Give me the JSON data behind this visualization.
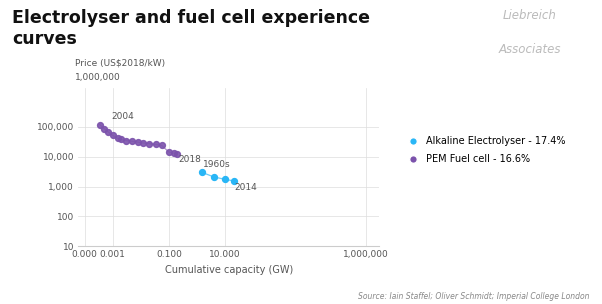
{
  "title": "Electrolyser and fuel cell experience\ncurves",
  "xlabel": "Cumulative capacity (GW)",
  "source": "Source: Iain Staffel; Oliver Schmidt; Imperial College London",
  "logo_line1": "Liebreich",
  "logo_line2": "Associates",
  "pem_x": [
    0.00035,
    0.0005,
    0.0007,
    0.001,
    0.0015,
    0.002,
    0.003,
    0.005,
    0.008,
    0.012,
    0.02,
    0.035,
    0.055,
    0.1,
    0.15,
    0.2
  ],
  "pem_y": [
    120000,
    88000,
    68000,
    52000,
    42000,
    38000,
    35000,
    33000,
    31000,
    29000,
    27500,
    26000,
    24000,
    14500,
    13200,
    12800
  ],
  "pem_color": "#7B52AB",
  "pem_label": "PEM Fuel cell - 16.6%",
  "alkaline_x": [
    1.5,
    4.0,
    10.0,
    20.0
  ],
  "alkaline_y": [
    3000,
    2100,
    1750,
    1550
  ],
  "alkaline_color": "#29B6F6",
  "alkaline_label": "Alkaline Electrolyser - 17.4%",
  "ann_2004_x": 0.00035,
  "ann_2004_y": 120000,
  "ann_2018_x": 0.2,
  "ann_2018_y": 12800,
  "ann_1960s_x": 1.5,
  "ann_1960s_y": 3000,
  "ann_2014_x": 20.0,
  "ann_2014_y": 1550,
  "x_ticks": [
    0.0001,
    0.001,
    0.1,
    10,
    1000000
  ],
  "x_labels": [
    "0.000",
    "0.001",
    "0.100",
    "10.000",
    "1,000,000"
  ],
  "y_ticks": [
    10,
    100,
    1000,
    10000,
    100000
  ],
  "y_labels": [
    "10",
    "100",
    "1,000",
    "10,000",
    "100,000"
  ],
  "xlim": [
    6e-05,
    3000000
  ],
  "ylim": [
    10,
    2000000
  ],
  "background_color": "#ffffff",
  "grid_color": "#dddddd",
  "spine_color": "#cccccc",
  "tick_color": "#555555",
  "annotation_color": "#555555"
}
